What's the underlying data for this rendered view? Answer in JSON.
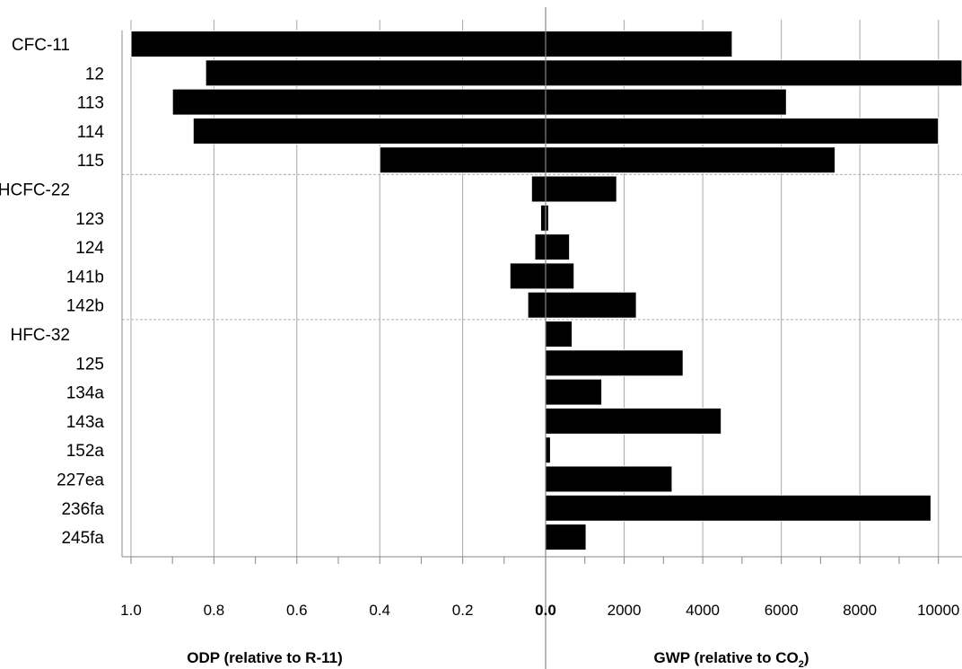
{
  "chart_data": {
    "type": "bar",
    "orientation": "horizontal",
    "categories": [
      "CFC-11",
      "12",
      "113",
      "114",
      "115",
      "HCFC-22",
      "123",
      "124",
      "141b",
      "142b",
      "HFC-32",
      "125",
      "134a",
      "143a",
      "152a",
      "227ea",
      "236fa",
      "245fa"
    ],
    "groups": [
      {
        "label": "CFC",
        "start": 0,
        "end": 4
      },
      {
        "label": "HCFC",
        "start": 5,
        "end": 9
      },
      {
        "label": "HFC",
        "start": 10,
        "end": 17
      }
    ],
    "series": [
      {
        "name": "ODP",
        "values": [
          1.0,
          0.82,
          0.9,
          0.85,
          0.4,
          0.034,
          0.012,
          0.026,
          0.086,
          0.043,
          0,
          0,
          0,
          0,
          0,
          0,
          0,
          0
        ]
      },
      {
        "name": "GWP",
        "values": [
          4750,
          10900,
          6130,
          10000,
          7370,
          1810,
          77,
          609,
          725,
          2310,
          675,
          3500,
          1430,
          4470,
          124,
          3220,
          9810,
          1030
        ]
      }
    ],
    "left_axis": {
      "label": "ODP (relative to R-11)",
      "range": [
        1.0,
        0.0
      ],
      "ticks": [
        "1.0",
        "0.8",
        "0.6",
        "0.4",
        "0.2",
        "0.0"
      ],
      "tick_values": [
        1.0,
        0.8,
        0.6,
        0.4,
        0.2,
        0.0
      ]
    },
    "right_axis": {
      "label_main": "GWP (relative to CO",
      "label_sub": "2",
      "label_end": ")",
      "range": [
        0,
        10600
      ],
      "ticks": [
        "2000",
        "4000",
        "6000",
        "8000",
        "10000"
      ],
      "tick_values": [
        2000,
        4000,
        6000,
        8000,
        10000
      ]
    },
    "grid": true
  },
  "colors": {
    "bar": "#000000",
    "bar_edge": "#ffffff",
    "grid": "#a8a8a8",
    "axis": "#888888",
    "group_divider": "#b0b0b0"
  }
}
